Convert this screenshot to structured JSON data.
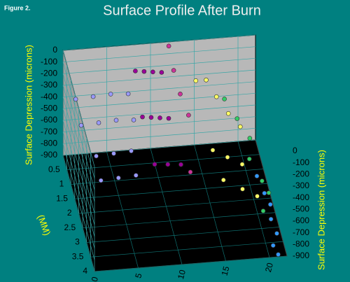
{
  "chart_data": {
    "type": "scatter3d",
    "figure_label": "Figure 2.",
    "title": "Surface Profile After Burn",
    "zlabel": "Surface Depression (microns)",
    "ylabel": "(MM)",
    "xlim": [
      0,
      22
    ],
    "ylim": [
      0,
      4
    ],
    "zlim": [
      -900,
      0
    ],
    "xticks": [
      0,
      5,
      10,
      15,
      20
    ],
    "yticks": [
      0.5,
      1,
      1.5,
      2,
      2.5,
      3,
      3.5,
      4
    ],
    "zticks": [
      0,
      -100,
      -200,
      -300,
      -400,
      -500,
      -600,
      -700,
      -800,
      -900
    ],
    "grid": true,
    "series": [
      {
        "color": "#9999ff",
        "x": [
          1,
          3,
          5,
          7,
          1,
          3,
          5,
          7,
          2,
          4,
          6,
          2,
          4,
          6
        ],
        "y": [
          0.5,
          0.5,
          0.5,
          0.5,
          1.2,
          1.2,
          1.2,
          1.2,
          2,
          2,
          2,
          2.6,
          2.6,
          2.6
        ],
        "z": [
          -300,
          -290,
          -280,
          -290,
          -350,
          -340,
          -330,
          -340,
          -420,
          -410,
          -400,
          -480,
          -470,
          -460
        ]
      },
      {
        "color": "#990099",
        "x": [
          8,
          9,
          10,
          11,
          8,
          9,
          10,
          11,
          8.5,
          10,
          11.5
        ],
        "y": [
          0.3,
          0.3,
          0.3,
          0.3,
          1.2,
          1.2,
          1.2,
          1.2,
          2.2,
          2.2,
          2.2
        ],
        "z": [
          -150,
          -160,
          -170,
          -180,
          -320,
          -330,
          -340,
          -350,
          -480,
          -490,
          -500
        ]
      },
      {
        "color": "#cc3399",
        "x": [
          12,
          12.2,
          12.5,
          13,
          12.4
        ],
        "y": [
          0.1,
          0.5,
          1,
          1.5,
          2.4
        ],
        "z": [
          -10,
          -120,
          -200,
          -260,
          -520
        ]
      },
      {
        "color": "#ffff66",
        "x": [
          15,
          16,
          17,
          18,
          19,
          15.5,
          17,
          18.5,
          16,
          18,
          19.5
        ],
        "y": [
          0.2,
          0.4,
          0.6,
          1,
          1.4,
          1.8,
          2,
          2.2,
          2.6,
          2.8,
          3
        ],
        "z": [
          -300,
          -250,
          -350,
          -400,
          -420,
          -500,
          -520,
          -540,
          -560,
          -600,
          -620
        ]
      },
      {
        "color": "#33cc66",
        "x": [
          18,
          19,
          20,
          19.5,
          20.5,
          21,
          20
        ],
        "y": [
          0.5,
          1,
          1.5,
          2,
          2.5,
          2.8,
          3.2
        ],
        "z": [
          -400,
          -450,
          -500,
          -550,
          -620,
          -650,
          -700
        ]
      },
      {
        "color": "#3399ff",
        "x": [
          20,
          20.5,
          21,
          20.8,
          21.2,
          20.6,
          21
        ],
        "y": [
          2.4,
          2.8,
          3,
          3.3,
          3.6,
          3.8,
          4
        ],
        "z": [
          -600,
          -650,
          -700,
          -750,
          -800,
          -850,
          -880
        ]
      }
    ]
  }
}
